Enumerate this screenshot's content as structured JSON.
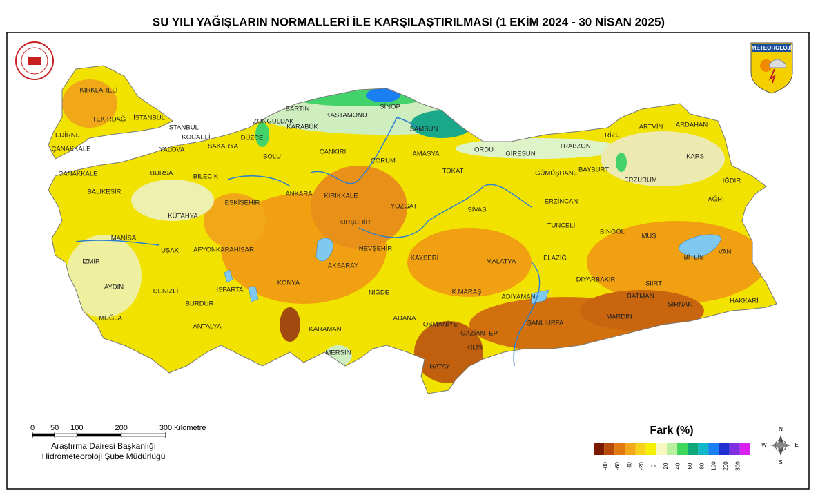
{
  "title": "SU YILI YAĞIŞLARIN NORMALLERİ İLE KARŞILAŞTIRILMASI (1 EKİM 2024 - 30 NİSAN 2025)",
  "logo_text": "METEOROLOJİ",
  "provinces": [
    "KIRKLARELİ",
    "TEKİRDAĞ",
    "EDİRNE",
    "İSTANBUL",
    "İSTANBUL",
    "ÇANAKKALE",
    "ÇANAKKALE",
    "KOCAELİ",
    "YALOVA",
    "SAKARYA",
    "DÜZCE",
    "ZONGULDAK",
    "BARTIN",
    "KARABÜK",
    "KASTAMONU",
    "SİNOP",
    "SAMSUN",
    "BOLU",
    "ÇANKIRI",
    "ÇORUM",
    "AMASYA",
    "ORDU",
    "GİRESUN",
    "TRABZON",
    "RİZE",
    "ARTVİN",
    "ARDAHAN",
    "KARS",
    "TOKAT",
    "GÜMÜŞHANE",
    "BAYBURT",
    "ERZURUM",
    "IĞDIR",
    "AĞRI",
    "BURSA",
    "BİLECİK",
    "BALIKESİR",
    "ESKİŞEHİR",
    "ANKARA",
    "KIRIKKALE",
    "YOZGAT",
    "SİVAS",
    "ERZİNCAN",
    "TUNCELİ",
    "BİNGÖL",
    "MUŞ",
    "KÜTAHYA",
    "KIRŞEHİR",
    "MANİSA",
    "UŞAK",
    "AFYONKARAHİSAR",
    "NEVŞEHİR",
    "KAYSERİ",
    "MALATYA",
    "ELAZIĞ",
    "BİTLİS",
    "VAN",
    "İZMİR",
    "AKSARAY",
    "DİYARBAKIR",
    "SİİRT",
    "KONYA",
    "AYDIN",
    "DENİZLİ",
    "ISPARTA",
    "NİĞDE",
    "K.MARAŞ",
    "ADIYAMAN",
    "BATMAN",
    "ŞIRNAK",
    "HAKKARİ",
    "BURDUR",
    "ADANA",
    "OSMANİYE",
    "ŞANLIURFA",
    "MARDİN",
    "MUĞLA",
    "ANTALYA",
    "KARAMAN",
    "GAZİANTEP",
    "KİLİS",
    "MERSİN",
    "HATAY"
  ],
  "scale_bar": {
    "ticks": [
      0,
      50,
      100,
      200,
      300
    ],
    "unit": "Kilometre"
  },
  "credits": [
    "Araştırma Dairesi Başkanlığı",
    "Hidrometeoroloji Şube Müdürlüğü"
  ],
  "legend": {
    "title": "Fark (%)",
    "labels": [
      -80,
      -60,
      -40,
      -20,
      0,
      20,
      40,
      60,
      80,
      100,
      200,
      300
    ],
    "colors": [
      "#7a1a00",
      "#b84a08",
      "#e07a10",
      "#f4a81c",
      "#f7d21a",
      "#f5f000",
      "#f7f7c0",
      "#b8f0a0",
      "#3fd85a",
      "#10a878",
      "#12b8c8",
      "#1a7ff0",
      "#2030d0",
      "#8030e0",
      "#d820f0"
    ]
  },
  "compass": {
    "n": "N",
    "e": "E",
    "s": "S",
    "w": "W"
  }
}
